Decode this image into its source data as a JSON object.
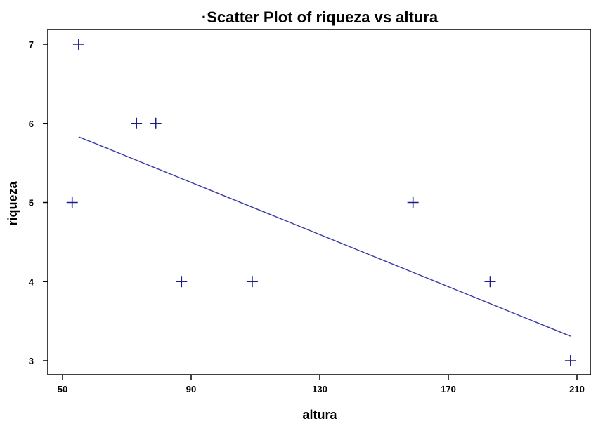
{
  "chart_data": {
    "type": "scatter",
    "title": "·Scatter Plot of riqueza vs altura",
    "xlabel": "altura",
    "ylabel": "riqueza",
    "xlim": [
      50,
      210
    ],
    "ylim": [
      3,
      7
    ],
    "xticks": [
      50,
      90,
      130,
      170,
      210
    ],
    "yticks": [
      3,
      4,
      5,
      6,
      7
    ],
    "marker": "plus",
    "marker_color": "#1c1c8c",
    "line_color": "#3a3aa6",
    "points": [
      {
        "x": 55,
        "y": 7
      },
      {
        "x": 53,
        "y": 5
      },
      {
        "x": 73,
        "y": 6
      },
      {
        "x": 79,
        "y": 6
      },
      {
        "x": 87,
        "y": 4
      },
      {
        "x": 109,
        "y": 4
      },
      {
        "x": 159,
        "y": 5
      },
      {
        "x": 183,
        "y": 4
      },
      {
        "x": 208,
        "y": 3
      }
    ],
    "fit_line": {
      "x": [
        55,
        208
      ],
      "y": [
        5.83,
        3.31
      ]
    }
  }
}
